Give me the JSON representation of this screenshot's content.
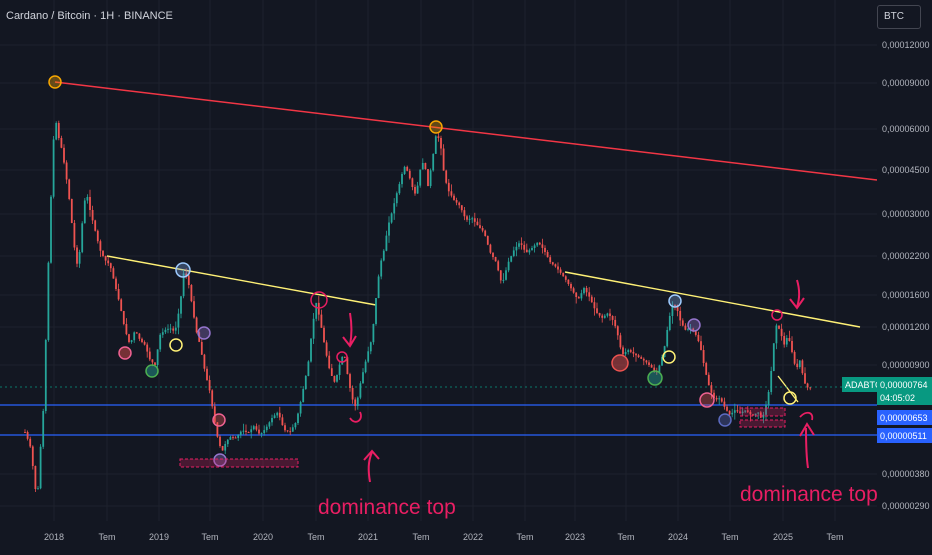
{
  "header": {
    "title": "Cardano / Bitcoin · 1H · BINANCE",
    "currency_button": "BTC"
  },
  "colors": {
    "background": "#131722",
    "grid": "#1e222d",
    "candle_up": "#26a69a",
    "candle_down": "#ef5350",
    "red_trendline": "#f23645",
    "yellow_trendline": "#fff176",
    "support_line": "#2962ff",
    "annotation": "#e91e63",
    "price_badge": "#089981",
    "support_badge": "#2962ff"
  },
  "chart_data": {
    "type": "candlestick",
    "symbol": "ADABTC",
    "scale": "log",
    "ylim": [
      2.6e-06,
      1.35e-05
    ],
    "y_ticks": [
      "0,00012000",
      "0,00009000",
      "0,00006000",
      "0,00004500",
      "0,00003000",
      "0,00002200",
      "0,00001600",
      "0,00001200",
      "0,00000900",
      "0,00000380",
      "0,00000290"
    ],
    "x_ticks": [
      "2018",
      "Tem",
      "2019",
      "Tem",
      "2020",
      "Tem",
      "2021",
      "Tem",
      "2022",
      "Tem",
      "2023",
      "Tem",
      "2024",
      "Tem",
      "2025",
      "Tem"
    ],
    "current_price": "0,00000764",
    "countdown": "04:05:02",
    "symbol_label": "ADABTC",
    "support_levels": [
      "0,00000653",
      "0,00000511"
    ],
    "annotations": [
      {
        "text": "dominance top"
      },
      {
        "text": "dominance top"
      }
    ]
  }
}
